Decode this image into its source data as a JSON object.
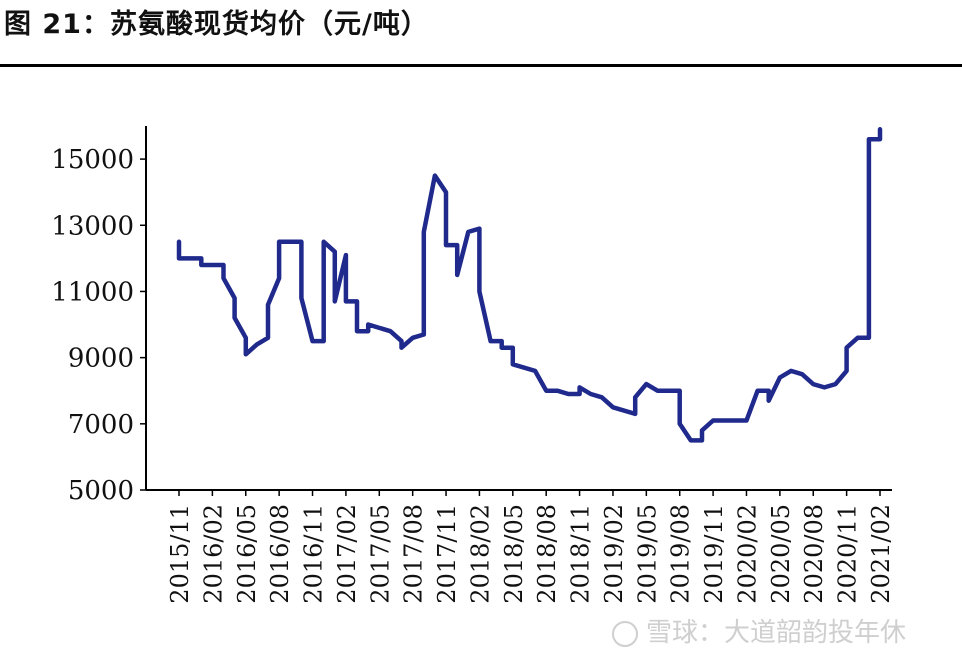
{
  "title": "图 21：苏氨酸现货均价（元/吨）",
  "watermark": "雪球：大道韶韵投年休",
  "colors": {
    "line": "#1f2a8c",
    "axis": "#000000",
    "text": "#111111"
  },
  "chart_data": {
    "type": "line",
    "title": "图 21：苏氨酸现货均价（元/吨）",
    "xlabel": "",
    "ylabel": "",
    "ylim": [
      5000,
      16000
    ],
    "yticks": [
      5000,
      7000,
      9000,
      11000,
      13000,
      15000
    ],
    "xticks": [
      "2015/11",
      "2016/02",
      "2016/05",
      "2016/08",
      "2016/11",
      "2017/02",
      "2017/05",
      "2017/08",
      "2017/11",
      "2018/02",
      "2018/05",
      "2018/08",
      "2018/11",
      "2019/02",
      "2019/05",
      "2019/08",
      "2019/11",
      "2020/02",
      "2020/05",
      "2020/08",
      "2020/11",
      "2021/02"
    ],
    "x_range": [
      "2015/11",
      "2021/02"
    ],
    "grid": false,
    "series": [
      {
        "name": "",
        "points": [
          [
            "2015/11",
            12500
          ],
          [
            "2015/11",
            12000
          ],
          [
            "2016/01",
            12000
          ],
          [
            "2016/01",
            11800
          ],
          [
            "2016/03",
            11800
          ],
          [
            "2016/03",
            11400
          ],
          [
            "2016/04",
            10800
          ],
          [
            "2016/04",
            10200
          ],
          [
            "2016/05",
            9600
          ],
          [
            "2016/05",
            9100
          ],
          [
            "2016/06",
            9400
          ],
          [
            "2016/07",
            9600
          ],
          [
            "2016/07",
            10600
          ],
          [
            "2016/08",
            11400
          ],
          [
            "2016/08",
            12500
          ],
          [
            "2016/10",
            12500
          ],
          [
            "2016/10",
            11800
          ],
          [
            "2016/10",
            10800
          ],
          [
            "2016/11",
            9500
          ],
          [
            "2016/12",
            9500
          ],
          [
            "2016/12",
            12500
          ],
          [
            "2017/01",
            12200
          ],
          [
            "2017/01",
            10700
          ],
          [
            "2017/02",
            12100
          ],
          [
            "2017/02",
            10700
          ],
          [
            "2017/03",
            10700
          ],
          [
            "2017/03",
            9800
          ],
          [
            "2017/04",
            9800
          ],
          [
            "2017/04",
            10000
          ],
          [
            "2017/06",
            9800
          ],
          [
            "2017/07",
            9500
          ],
          [
            "2017/07",
            9300
          ],
          [
            "2017/08",
            9600
          ],
          [
            "2017/09",
            9700
          ],
          [
            "2017/09",
            12800
          ],
          [
            "2017/10",
            14500
          ],
          [
            "2017/11",
            14000
          ],
          [
            "2017/11",
            12400
          ],
          [
            "2017/12",
            12400
          ],
          [
            "2017/12",
            11500
          ],
          [
            "2018/01",
            12800
          ],
          [
            "2018/02",
            12900
          ],
          [
            "2018/02",
            11000
          ],
          [
            "2018/03",
            9500
          ],
          [
            "2018/04",
            9500
          ],
          [
            "2018/04",
            9300
          ],
          [
            "2018/05",
            9300
          ],
          [
            "2018/05",
            8800
          ],
          [
            "2018/07",
            8600
          ],
          [
            "2018/08",
            8000
          ],
          [
            "2018/09",
            8000
          ],
          [
            "2018/10",
            7900
          ],
          [
            "2018/11",
            7900
          ],
          [
            "2018/11",
            8100
          ],
          [
            "2018/12",
            7900
          ],
          [
            "2019/01",
            7800
          ],
          [
            "2019/02",
            7500
          ],
          [
            "2019/04",
            7300
          ],
          [
            "2019/04",
            7800
          ],
          [
            "2019/05",
            8200
          ],
          [
            "2019/06",
            8000
          ],
          [
            "2019/08",
            8000
          ],
          [
            "2019/08",
            7000
          ],
          [
            "2019/09",
            6500
          ],
          [
            "2019/10",
            6500
          ],
          [
            "2019/10",
            6800
          ],
          [
            "2019/11",
            7100
          ],
          [
            "2020/02",
            7100
          ],
          [
            "2020/03",
            8000
          ],
          [
            "2020/04",
            8000
          ],
          [
            "2020/04",
            7700
          ],
          [
            "2020/05",
            8400
          ],
          [
            "2020/06",
            8600
          ],
          [
            "2020/07",
            8500
          ],
          [
            "2020/08",
            8200
          ],
          [
            "2020/09",
            8100
          ],
          [
            "2020/10",
            8200
          ],
          [
            "2020/11",
            8600
          ],
          [
            "2020/11",
            9300
          ],
          [
            "2020/12",
            9600
          ],
          [
            "2021/01",
            9600
          ],
          [
            "2021/01",
            15600
          ],
          [
            "2021/02",
            15600
          ],
          [
            "2021/02",
            15900
          ]
        ]
      }
    ]
  }
}
